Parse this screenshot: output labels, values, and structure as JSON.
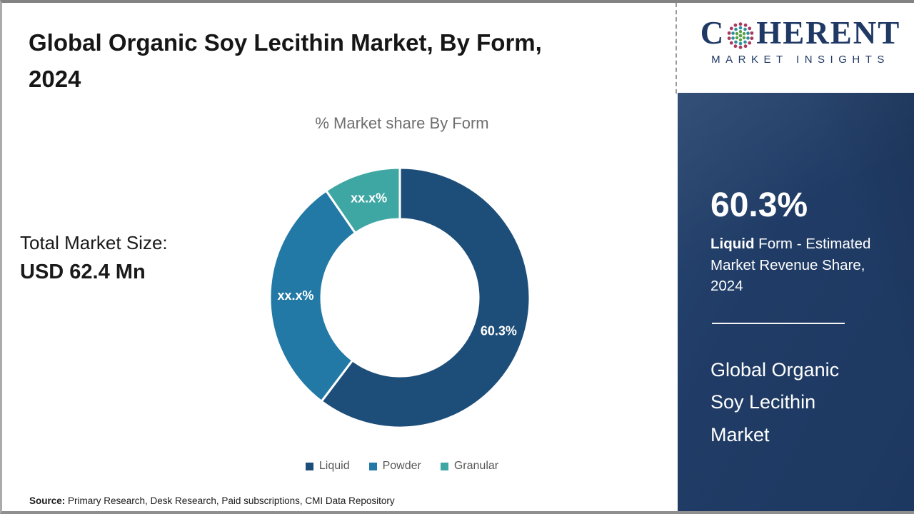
{
  "page": {
    "title": "Global Organic Soy Lecithin Market, By Form, 2024",
    "total_market_label": "Total Market Size:",
    "total_market_value": "USD 62.4 Mn",
    "source_label": "Source:",
    "source_text": " Primary Research, Desk Research, Paid subscriptions, CMI Data Repository"
  },
  "chart_data": {
    "type": "pie",
    "subtype": "donut",
    "title": "% Market share By Form",
    "categories": [
      "Liquid",
      "Powder",
      "Granular"
    ],
    "values": [
      60.3,
      30.1,
      9.6
    ],
    "labels": [
      "60.3%",
      "xx.x%",
      "xx.x%"
    ],
    "colors": [
      "#1d4e79",
      "#2279a6",
      "#3fa7a3"
    ],
    "start_angle_deg": 0,
    "direction": "clockwise",
    "legend_position": "bottom"
  },
  "logo": {
    "brand_c": "C",
    "brand_rest": "HERENT",
    "subtitle": "MARKET INSIGHTS",
    "brand_color": "#1f3864",
    "globe_colors": {
      "center": "#5a9e45",
      "mid": "#2e8fa0",
      "outer": "#a93a60"
    }
  },
  "sidebar": {
    "panel_color": "#1f3a63",
    "stat_value": "60.3%",
    "stat_bold": "Liquid",
    "stat_rest": " Form - Estimated Market Revenue Share, 2024",
    "market_title": "Global Organic Soy Lecithin Market"
  }
}
